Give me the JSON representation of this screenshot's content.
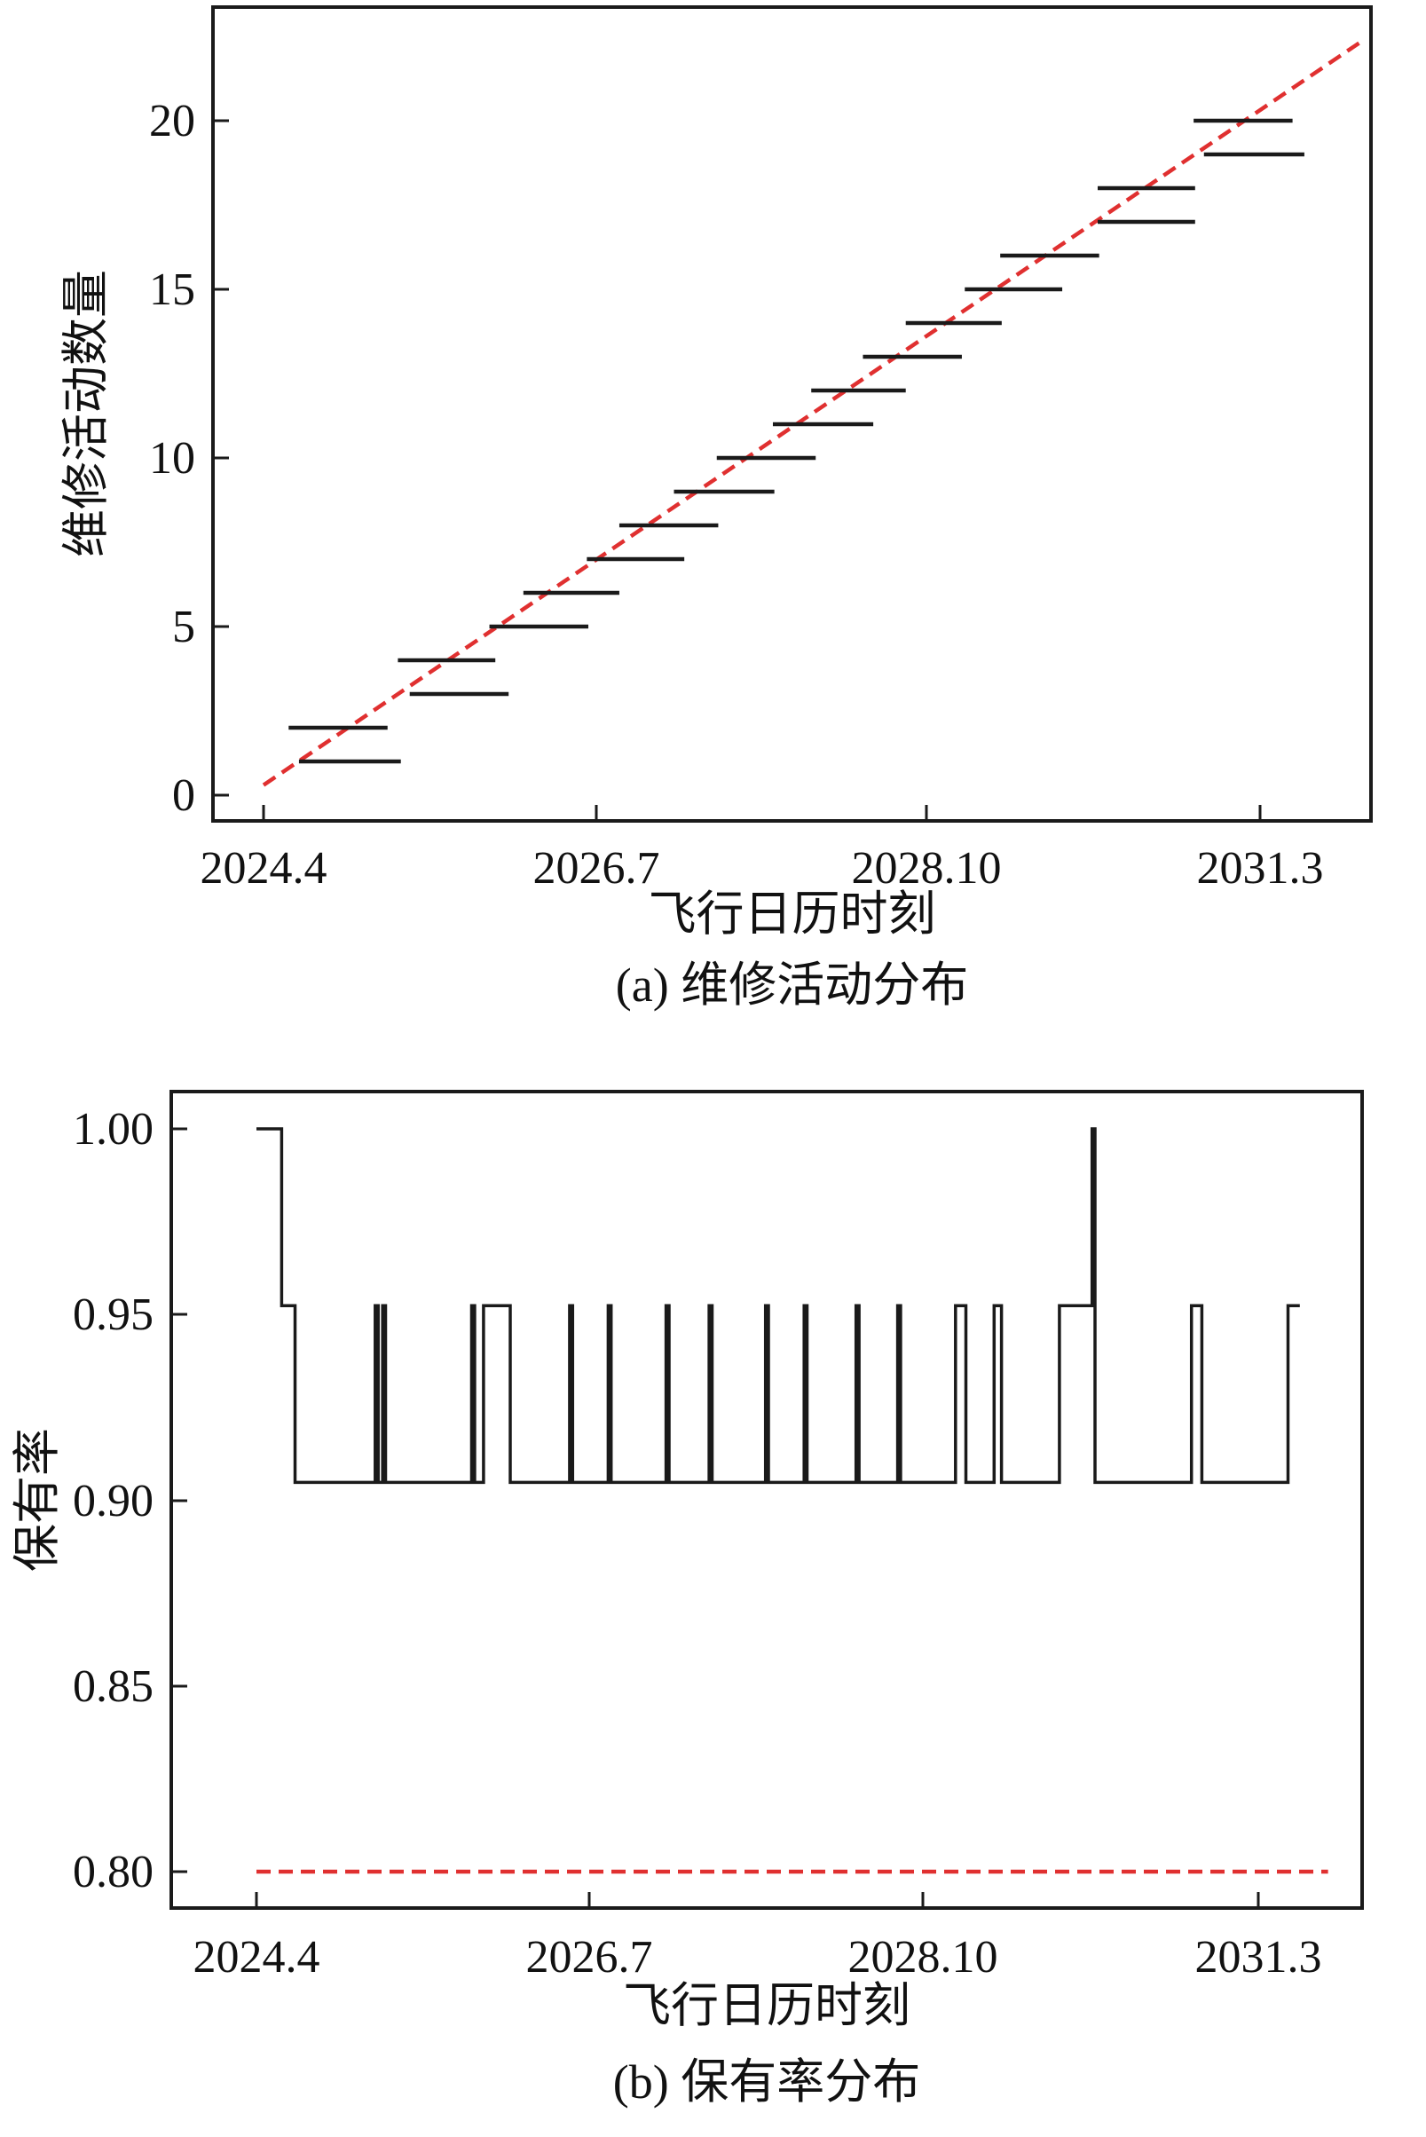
{
  "chart_data": [
    {
      "type": "line",
      "caption": "(a) 维修活动分布",
      "xlabel": "飞行日历时刻",
      "ylabel": "维修活动数量",
      "x_ticks": [
        "2024.4",
        "2026.7",
        "2028.10",
        "2031.3"
      ],
      "y_ticks": [
        "0",
        "5",
        "10",
        "15",
        "20"
      ],
      "ylim": [
        -0.7,
        22.7
      ],
      "grid": false,
      "series": [
        {
          "style": "dashed",
          "color": "#e03030",
          "points": [
            [
              2024.33,
              0.3
            ],
            [
              2031.75,
              22.3
            ]
          ]
        },
        {
          "style": "segments",
          "color": "#1a1a1a",
          "segments": [
            {
              "y": 1,
              "x0": 2024.57,
              "x1": 2025.26
            },
            {
              "y": 2,
              "x0": 2024.5,
              "x1": 2025.17
            },
            {
              "y": 3,
              "x0": 2025.32,
              "x1": 2025.99
            },
            {
              "y": 4,
              "x0": 2025.24,
              "x1": 2025.9
            },
            {
              "y": 5,
              "x0": 2025.86,
              "x1": 2026.53
            },
            {
              "y": 6,
              "x0": 2026.09,
              "x1": 2026.74
            },
            {
              "y": 7,
              "x0": 2026.52,
              "x1": 2027.18
            },
            {
              "y": 8,
              "x0": 2026.74,
              "x1": 2027.41
            },
            {
              "y": 9,
              "x0": 2027.11,
              "x1": 2027.79
            },
            {
              "y": 10,
              "x0": 2027.4,
              "x1": 2028.07
            },
            {
              "y": 11,
              "x0": 2027.78,
              "x1": 2028.46
            },
            {
              "y": 12,
              "x0": 2028.04,
              "x1": 2028.68
            },
            {
              "y": 13,
              "x0": 2028.39,
              "x1": 2029.06
            },
            {
              "y": 14,
              "x0": 2028.68,
              "x1": 2029.33
            },
            {
              "y": 15,
              "x0": 2029.08,
              "x1": 2029.74
            },
            {
              "y": 16,
              "x0": 2029.32,
              "x1": 2029.99
            },
            {
              "y": 17,
              "x0": 2029.98,
              "x1": 2030.64
            },
            {
              "y": 18,
              "x0": 2029.98,
              "x1": 2030.64
            },
            {
              "y": 19,
              "x0": 2030.7,
              "x1": 2031.38
            },
            {
              "y": 20,
              "x0": 2030.63,
              "x1": 2031.3
            }
          ]
        }
      ]
    },
    {
      "type": "line",
      "caption": "(b) 保有率分布",
      "xlabel": "飞行日历时刻",
      "ylabel": "保有率",
      "x_ticks": [
        "2024.4",
        "2026.7",
        "2028.10",
        "2031.3"
      ],
      "y_ticks": [
        "0.80",
        "0.85",
        "0.90",
        "0.95",
        "1.00"
      ],
      "ylim": [
        0.791,
        1.011
      ],
      "grid": false,
      "series": [
        {
          "style": "dashed",
          "color": "#e03030",
          "points": [
            [
              2024.33,
              0.8
            ],
            [
              2031.55,
              0.8
            ]
          ]
        },
        {
          "style": "step",
          "color": "#1a1a1a",
          "points": [
            [
              2024.33,
              1.0
            ],
            [
              2024.5,
              1.0
            ],
            [
              2024.5,
              0.9524
            ],
            [
              2024.59,
              0.9524
            ],
            [
              2024.59,
              0.9048
            ],
            [
              2025.13,
              0.9048
            ],
            [
              2025.13,
              0.9524
            ],
            [
              2025.15,
              0.9524
            ],
            [
              2025.15,
              0.9048
            ],
            [
              2025.18,
              0.9048
            ],
            [
              2025.18,
              0.9524
            ],
            [
              2025.2,
              0.9524
            ],
            [
              2025.2,
              0.9048
            ],
            [
              2025.78,
              0.9048
            ],
            [
              2025.78,
              0.9524
            ],
            [
              2025.8,
              0.9524
            ],
            [
              2025.8,
              0.9048
            ],
            [
              2025.86,
              0.9048
            ],
            [
              2025.86,
              0.9524
            ],
            [
              2026.04,
              0.9524
            ],
            [
              2026.04,
              0.9048
            ],
            [
              2026.44,
              0.9048
            ],
            [
              2026.44,
              0.9524
            ],
            [
              2026.46,
              0.9524
            ],
            [
              2026.46,
              0.9048
            ],
            [
              2026.7,
              0.9048
            ],
            [
              2026.7,
              0.9524
            ],
            [
              2026.72,
              0.9524
            ],
            [
              2026.72,
              0.9048
            ],
            [
              2027.09,
              0.9048
            ],
            [
              2027.09,
              0.9524
            ],
            [
              2027.11,
              0.9524
            ],
            [
              2027.11,
              0.9048
            ],
            [
              2027.38,
              0.9048
            ],
            [
              2027.38,
              0.9524
            ],
            [
              2027.4,
              0.9524
            ],
            [
              2027.4,
              0.9048
            ],
            [
              2027.76,
              0.9048
            ],
            [
              2027.76,
              0.9524
            ],
            [
              2027.78,
              0.9524
            ],
            [
              2027.78,
              0.9048
            ],
            [
              2028.02,
              0.9048
            ],
            [
              2028.02,
              0.9524
            ],
            [
              2028.04,
              0.9524
            ],
            [
              2028.04,
              0.9048
            ],
            [
              2028.37,
              0.9048
            ],
            [
              2028.37,
              0.9524
            ],
            [
              2028.39,
              0.9524
            ],
            [
              2028.39,
              0.9048
            ],
            [
              2028.65,
              0.9048
            ],
            [
              2028.65,
              0.9524
            ],
            [
              2028.67,
              0.9524
            ],
            [
              2028.67,
              0.9048
            ],
            [
              2029.04,
              0.9048
            ],
            [
              2029.04,
              0.9524
            ],
            [
              2029.11,
              0.9524
            ],
            [
              2029.11,
              0.9048
            ],
            [
              2029.3,
              0.9048
            ],
            [
              2029.3,
              0.9524
            ],
            [
              2029.35,
              0.9524
            ],
            [
              2029.35,
              0.9048
            ],
            [
              2029.74,
              0.9048
            ],
            [
              2029.74,
              0.9524
            ],
            [
              2029.96,
              0.9524
            ],
            [
              2029.96,
              1.0
            ],
            [
              2029.98,
              1.0
            ],
            [
              2029.98,
              0.9048
            ],
            [
              2030.63,
              0.9048
            ],
            [
              2030.63,
              0.9524
            ],
            [
              2030.7,
              0.9524
            ],
            [
              2030.7,
              0.9048
            ],
            [
              2031.28,
              0.9048
            ],
            [
              2031.28,
              0.9524
            ],
            [
              2031.36,
              0.9524
            ]
          ]
        }
      ]
    }
  ]
}
